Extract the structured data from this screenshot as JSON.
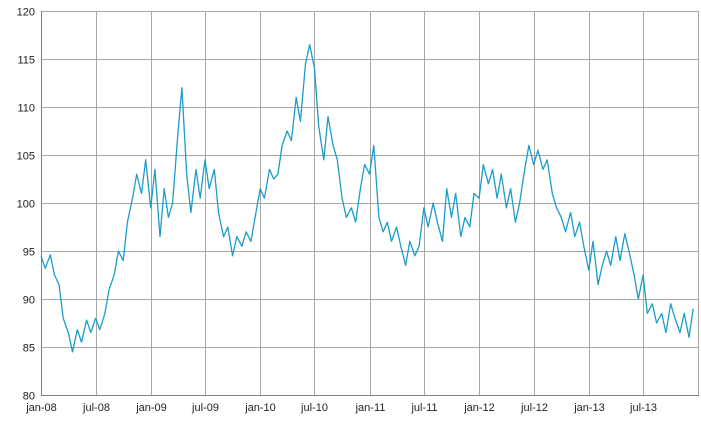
{
  "chart_data": {
    "type": "line",
    "title": "",
    "xlabel": "",
    "ylabel": "",
    "grid": true,
    "legend": "none",
    "ylim": [
      80,
      120
    ],
    "yticks": [
      80,
      85,
      90,
      95,
      100,
      105,
      110,
      115,
      120
    ],
    "xlim": [
      "2008-01-01",
      "2013-12-31"
    ],
    "xticks": [
      {
        "date": "2008-01-01",
        "label": "jan-08"
      },
      {
        "date": "2008-07-01",
        "label": "jul-08"
      },
      {
        "date": "2009-01-01",
        "label": "jan-09"
      },
      {
        "date": "2009-07-01",
        "label": "jul-09"
      },
      {
        "date": "2010-01-01",
        "label": "jan-10"
      },
      {
        "date": "2010-07-01",
        "label": "jul-10"
      },
      {
        "date": "2011-01-01",
        "label": "jan-11"
      },
      {
        "date": "2011-07-01",
        "label": "jul-11"
      },
      {
        "date": "2012-01-01",
        "label": "jan-12"
      },
      {
        "date": "2012-07-01",
        "label": "jul-12"
      },
      {
        "date": "2013-01-01",
        "label": "jan-13"
      },
      {
        "date": "2013-07-01",
        "label": "jul-13"
      }
    ],
    "series": [
      {
        "color": "#1b9cc9",
        "points": [
          [
            "2008-01-01",
            94.5
          ],
          [
            "2008-01-15",
            93.2
          ],
          [
            "2008-02-01",
            94.6
          ],
          [
            "2008-02-15",
            92.5
          ],
          [
            "2008-03-01",
            91.5
          ],
          [
            "2008-03-15",
            88.0
          ],
          [
            "2008-04-01",
            86.5
          ],
          [
            "2008-04-15",
            84.5
          ],
          [
            "2008-05-01",
            86.8
          ],
          [
            "2008-05-15",
            85.5
          ],
          [
            "2008-06-01",
            87.8
          ],
          [
            "2008-06-15",
            86.5
          ],
          [
            "2008-07-01",
            88.0
          ],
          [
            "2008-07-15",
            86.8
          ],
          [
            "2008-08-01",
            88.5
          ],
          [
            "2008-08-15",
            91.0
          ],
          [
            "2008-09-01",
            92.5
          ],
          [
            "2008-09-15",
            95.0
          ],
          [
            "2008-10-01",
            94.0
          ],
          [
            "2008-10-15",
            98.0
          ],
          [
            "2008-11-01",
            100.5
          ],
          [
            "2008-11-15",
            103.0
          ],
          [
            "2008-12-01",
            101.0
          ],
          [
            "2008-12-15",
            104.5
          ],
          [
            "2009-01-01",
            99.5
          ],
          [
            "2009-01-15",
            103.5
          ],
          [
            "2009-02-01",
            96.5
          ],
          [
            "2009-02-15",
            101.5
          ],
          [
            "2009-03-01",
            98.5
          ],
          [
            "2009-03-15",
            100.0
          ],
          [
            "2009-04-01",
            107.0
          ],
          [
            "2009-04-15",
            112.0
          ],
          [
            "2009-05-01",
            103.0
          ],
          [
            "2009-05-15",
            99.0
          ],
          [
            "2009-06-01",
            103.5
          ],
          [
            "2009-06-15",
            100.5
          ],
          [
            "2009-07-01",
            104.5
          ],
          [
            "2009-07-15",
            101.5
          ],
          [
            "2009-08-01",
            103.5
          ],
          [
            "2009-08-15",
            99.0
          ],
          [
            "2009-09-01",
            96.5
          ],
          [
            "2009-09-15",
            97.5
          ],
          [
            "2009-10-01",
            94.5
          ],
          [
            "2009-10-15",
            96.5
          ],
          [
            "2009-11-01",
            95.5
          ],
          [
            "2009-11-15",
            97.0
          ],
          [
            "2009-12-01",
            96.0
          ],
          [
            "2009-12-15",
            98.5
          ],
          [
            "2010-01-01",
            101.5
          ],
          [
            "2010-01-15",
            100.5
          ],
          [
            "2010-02-01",
            103.5
          ],
          [
            "2010-02-15",
            102.5
          ],
          [
            "2010-03-01",
            103.0
          ],
          [
            "2010-03-15",
            106.0
          ],
          [
            "2010-04-01",
            107.5
          ],
          [
            "2010-04-15",
            106.5
          ],
          [
            "2010-05-01",
            111.0
          ],
          [
            "2010-05-15",
            108.5
          ],
          [
            "2010-06-01",
            114.5
          ],
          [
            "2010-06-15",
            116.5
          ],
          [
            "2010-07-01",
            114.0
          ],
          [
            "2010-07-15",
            108.0
          ],
          [
            "2010-08-01",
            104.5
          ],
          [
            "2010-08-15",
            109.0
          ],
          [
            "2010-09-01",
            106.0
          ],
          [
            "2010-09-15",
            104.5
          ],
          [
            "2010-10-01",
            100.5
          ],
          [
            "2010-10-15",
            98.5
          ],
          [
            "2010-11-01",
            99.5
          ],
          [
            "2010-11-15",
            98.0
          ],
          [
            "2010-12-01",
            101.5
          ],
          [
            "2010-12-15",
            104.0
          ],
          [
            "2011-01-01",
            103.0
          ],
          [
            "2011-01-15",
            106.0
          ],
          [
            "2011-02-01",
            98.5
          ],
          [
            "2011-02-15",
            97.0
          ],
          [
            "2011-03-01",
            98.0
          ],
          [
            "2011-03-15",
            96.0
          ],
          [
            "2011-04-01",
            97.5
          ],
          [
            "2011-04-15",
            95.5
          ],
          [
            "2011-05-01",
            93.5
          ],
          [
            "2011-05-15",
            96.0
          ],
          [
            "2011-06-01",
            94.5
          ],
          [
            "2011-06-15",
            95.5
          ],
          [
            "2011-07-01",
            99.5
          ],
          [
            "2011-07-15",
            97.5
          ],
          [
            "2011-08-01",
            100.0
          ],
          [
            "2011-08-15",
            98.0
          ],
          [
            "2011-09-01",
            96.0
          ],
          [
            "2011-09-15",
            101.5
          ],
          [
            "2011-10-01",
            98.5
          ],
          [
            "2011-10-15",
            101.0
          ],
          [
            "2011-11-01",
            96.5
          ],
          [
            "2011-11-15",
            98.5
          ],
          [
            "2011-12-01",
            97.5
          ],
          [
            "2011-12-15",
            101.0
          ],
          [
            "2012-01-01",
            100.5
          ],
          [
            "2012-01-15",
            104.0
          ],
          [
            "2012-02-01",
            102.0
          ],
          [
            "2012-02-15",
            103.5
          ],
          [
            "2012-03-01",
            100.5
          ],
          [
            "2012-03-15",
            103.0
          ],
          [
            "2012-04-01",
            99.5
          ],
          [
            "2012-04-15",
            101.5
          ],
          [
            "2012-05-01",
            98.0
          ],
          [
            "2012-05-15",
            100.0
          ],
          [
            "2012-06-01",
            103.5
          ],
          [
            "2012-06-15",
            106.0
          ],
          [
            "2012-07-01",
            104.0
          ],
          [
            "2012-07-15",
            105.5
          ],
          [
            "2012-08-01",
            103.5
          ],
          [
            "2012-08-15",
            104.5
          ],
          [
            "2012-09-01",
            101.0
          ],
          [
            "2012-09-15",
            99.5
          ],
          [
            "2012-10-01",
            98.5
          ],
          [
            "2012-10-15",
            97.0
          ],
          [
            "2012-11-01",
            99.0
          ],
          [
            "2012-11-15",
            96.5
          ],
          [
            "2012-12-01",
            98.0
          ],
          [
            "2012-12-15",
            95.5
          ],
          [
            "2013-01-01",
            93.0
          ],
          [
            "2013-01-15",
            96.0
          ],
          [
            "2013-02-01",
            91.5
          ],
          [
            "2013-02-15",
            93.5
          ],
          [
            "2013-03-01",
            95.0
          ],
          [
            "2013-03-15",
            93.5
          ],
          [
            "2013-04-01",
            96.5
          ],
          [
            "2013-04-15",
            94.0
          ],
          [
            "2013-05-01",
            96.8
          ],
          [
            "2013-05-15",
            95.0
          ],
          [
            "2013-06-01",
            92.5
          ],
          [
            "2013-06-15",
            90.0
          ],
          [
            "2013-07-01",
            92.5
          ],
          [
            "2013-07-15",
            88.5
          ],
          [
            "2013-08-01",
            89.5
          ],
          [
            "2013-08-15",
            87.5
          ],
          [
            "2013-09-01",
            88.5
          ],
          [
            "2013-09-15",
            86.5
          ],
          [
            "2013-10-01",
            89.5
          ],
          [
            "2013-10-15",
            88.0
          ],
          [
            "2013-11-01",
            86.5
          ],
          [
            "2013-11-15",
            88.5
          ],
          [
            "2013-12-01",
            86.0
          ],
          [
            "2013-12-15",
            89.0
          ]
        ]
      }
    ]
  }
}
